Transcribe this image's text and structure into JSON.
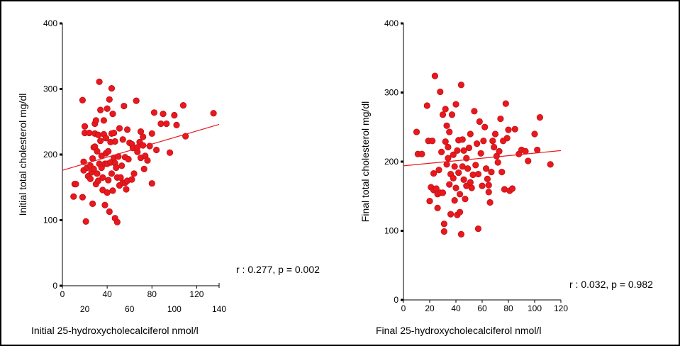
{
  "chart_data": [
    {
      "type": "scatter",
      "xlabel": "Initial 25-hydroxycholecalciferol nmol/l",
      "ylabel": "Initial total cholesterol mg/dl",
      "xlim": [
        0,
        140
      ],
      "ylim": [
        0,
        400
      ],
      "x_ticks_bottom": [
        "20",
        "60",
        "100",
        "140"
      ],
      "x_ticks_top": [
        "0",
        "40",
        "80",
        "120"
      ],
      "y_ticks": [
        "0",
        "100",
        "200",
        "300",
        "400"
      ],
      "annotation": "r : 0.277, p = 0.002",
      "point_color": "#e8191e",
      "trend_line": {
        "x": [
          0,
          140
        ],
        "y": [
          176,
          246
        ]
      },
      "points": [
        [
          10,
          136
        ],
        [
          11,
          155
        ],
        [
          12,
          155
        ],
        [
          18,
          135
        ],
        [
          18,
          283
        ],
        [
          19,
          176
        ],
        [
          19,
          189
        ],
        [
          20,
          243
        ],
        [
          20,
          233
        ],
        [
          21,
          98
        ],
        [
          22,
          180
        ],
        [
          23,
          167
        ],
        [
          24,
          233
        ],
        [
          25,
          163
        ],
        [
          25,
          183
        ],
        [
          26,
          173
        ],
        [
          27,
          194
        ],
        [
          27,
          125
        ],
        [
          28,
          178
        ],
        [
          28,
          211
        ],
        [
          29,
          247
        ],
        [
          29,
          232
        ],
        [
          29,
          212
        ],
        [
          30,
          252
        ],
        [
          30,
          155
        ],
        [
          31,
          171
        ],
        [
          31,
          205
        ],
        [
          32,
          230
        ],
        [
          32,
          160
        ],
        [
          33,
          186
        ],
        [
          33,
          311
        ],
        [
          34,
          268
        ],
        [
          34,
          221
        ],
        [
          35,
          198
        ],
        [
          35,
          180
        ],
        [
          36,
          146
        ],
        [
          36,
          165
        ],
        [
          37,
          252
        ],
        [
          37,
          231
        ],
        [
          38,
          123
        ],
        [
          38,
          186
        ],
        [
          39,
          202
        ],
        [
          39,
          225
        ],
        [
          40,
          270
        ],
        [
          40,
          186
        ],
        [
          40,
          142
        ],
        [
          41,
          161
        ],
        [
          41,
          205
        ],
        [
          42,
          113
        ],
        [
          42,
          284
        ],
        [
          43,
          219
        ],
        [
          43,
          188
        ],
        [
          44,
          171
        ],
        [
          44,
          301
        ],
        [
          44,
          232
        ],
        [
          45,
          262
        ],
        [
          45,
          145
        ],
        [
          46,
          195
        ],
        [
          46,
          233
        ],
        [
          47,
          103
        ],
        [
          47,
          220
        ],
        [
          47,
          187
        ],
        [
          48,
          180
        ],
        [
          49,
          97
        ],
        [
          49,
          165
        ],
        [
          50,
          197
        ],
        [
          51,
          240
        ],
        [
          51,
          153
        ],
        [
          52,
          165
        ],
        [
          53,
          183
        ],
        [
          54,
          157
        ],
        [
          54,
          223
        ],
        [
          55,
          274
        ],
        [
          56,
          157
        ],
        [
          56,
          196
        ],
        [
          57,
          147
        ],
        [
          58,
          238
        ],
        [
          58,
          160
        ],
        [
          59,
          193
        ],
        [
          60,
          218
        ],
        [
          62,
          216
        ],
        [
          62,
          162
        ],
        [
          63,
          210
        ],
        [
          64,
          171
        ],
        [
          66,
          282
        ],
        [
          67,
          204
        ],
        [
          67,
          211
        ],
        [
          69,
          219
        ],
        [
          70,
          235
        ],
        [
          70,
          195
        ],
        [
          72,
          214
        ],
        [
          72,
          227
        ],
        [
          73,
          178
        ],
        [
          74,
          198
        ],
        [
          76,
          191
        ],
        [
          78,
          213
        ],
        [
          80,
          232
        ],
        [
          80,
          156
        ],
        [
          82,
          264
        ],
        [
          84,
          207
        ],
        [
          88,
          247
        ],
        [
          90,
          262
        ],
        [
          93,
          247
        ],
        [
          96,
          203
        ],
        [
          100,
          260
        ],
        [
          102,
          245
        ],
        [
          108,
          275
        ],
        [
          110,
          228
        ],
        [
          135,
          263
        ]
      ]
    },
    {
      "type": "scatter",
      "xlabel": "Final 25-hydroxycholecalciferol nmol/l",
      "ylabel": "Final total cholesterol mg/dl",
      "xlim": [
        0,
        120
      ],
      "ylim": [
        0,
        400
      ],
      "x_ticks": [
        "0",
        "20",
        "40",
        "60",
        "80",
        "100",
        "120"
      ],
      "y_ticks": [
        "0",
        "100",
        "200",
        "300",
        "400"
      ],
      "annotation": "r : 0.032, p = 0.982",
      "point_color": "#e8191e",
      "trend_line": {
        "x": [
          0,
          120
        ],
        "y": [
          194,
          216
        ]
      },
      "points": [
        [
          10,
          243
        ],
        [
          11,
          211
        ],
        [
          14,
          211
        ],
        [
          18,
          281
        ],
        [
          19,
          230
        ],
        [
          20,
          143
        ],
        [
          21,
          163
        ],
        [
          22,
          230
        ],
        [
          23,
          159
        ],
        [
          23,
          183
        ],
        [
          24,
          324
        ],
        [
          25,
          161
        ],
        [
          26,
          133
        ],
        [
          26,
          153
        ],
        [
          27,
          188
        ],
        [
          28,
          155
        ],
        [
          28,
          301
        ],
        [
          29,
          214
        ],
        [
          30,
          268
        ],
        [
          30,
          155
        ],
        [
          31,
          110
        ],
        [
          31,
          99
        ],
        [
          32,
          276
        ],
        [
          32,
          229
        ],
        [
          33,
          252
        ],
        [
          33,
          196
        ],
        [
          34,
          205
        ],
        [
          34,
          221
        ],
        [
          35,
          243
        ],
        [
          35,
          167
        ],
        [
          36,
          124
        ],
        [
          36,
          182
        ],
        [
          37,
          268
        ],
        [
          38,
          176
        ],
        [
          38,
          210
        ],
        [
          39,
          144
        ],
        [
          39,
          193
        ],
        [
          40,
          283
        ],
        [
          40,
          162
        ],
        [
          41,
          216
        ],
        [
          41,
          123
        ],
        [
          42,
          184
        ],
        [
          42,
          231
        ],
        [
          43,
          153
        ],
        [
          43,
          127
        ],
        [
          44,
          311
        ],
        [
          44,
          95
        ],
        [
          45,
          232
        ],
        [
          45,
          193
        ],
        [
          46,
          174
        ],
        [
          46,
          216
        ],
        [
          47,
          146
        ],
        [
          48,
          205
        ],
        [
          48,
          165
        ],
        [
          49,
          190
        ],
        [
          50,
          220
        ],
        [
          51,
          240
        ],
        [
          51,
          170
        ],
        [
          52,
          162
        ],
        [
          53,
          181
        ],
        [
          54,
          273
        ],
        [
          55,
          195
        ],
        [
          56,
          226
        ],
        [
          57,
          103
        ],
        [
          57,
          182
        ],
        [
          58,
          258
        ],
        [
          59,
          212
        ],
        [
          60,
          165
        ],
        [
          61,
          230
        ],
        [
          62,
          250
        ],
        [
          63,
          190
        ],
        [
          64,
          175
        ],
        [
          65,
          166
        ],
        [
          65,
          156
        ],
        [
          66,
          141
        ],
        [
          67,
          185
        ],
        [
          68,
          230
        ],
        [
          69,
          221
        ],
        [
          70,
          240
        ],
        [
          71,
          208
        ],
        [
          72,
          199
        ],
        [
          73,
          215
        ],
        [
          74,
          262
        ],
        [
          75,
          185
        ],
        [
          76,
          230
        ],
        [
          77,
          160
        ],
        [
          78,
          284
        ],
        [
          79,
          234
        ],
        [
          80,
          246
        ],
        [
          81,
          158
        ],
        [
          83,
          161
        ],
        [
          85,
          247
        ],
        [
          88,
          211
        ],
        [
          90,
          217
        ],
        [
          93,
          215
        ],
        [
          95,
          201
        ],
        [
          100,
          240
        ],
        [
          102,
          217
        ],
        [
          104,
          264
        ],
        [
          112,
          196
        ]
      ]
    }
  ]
}
